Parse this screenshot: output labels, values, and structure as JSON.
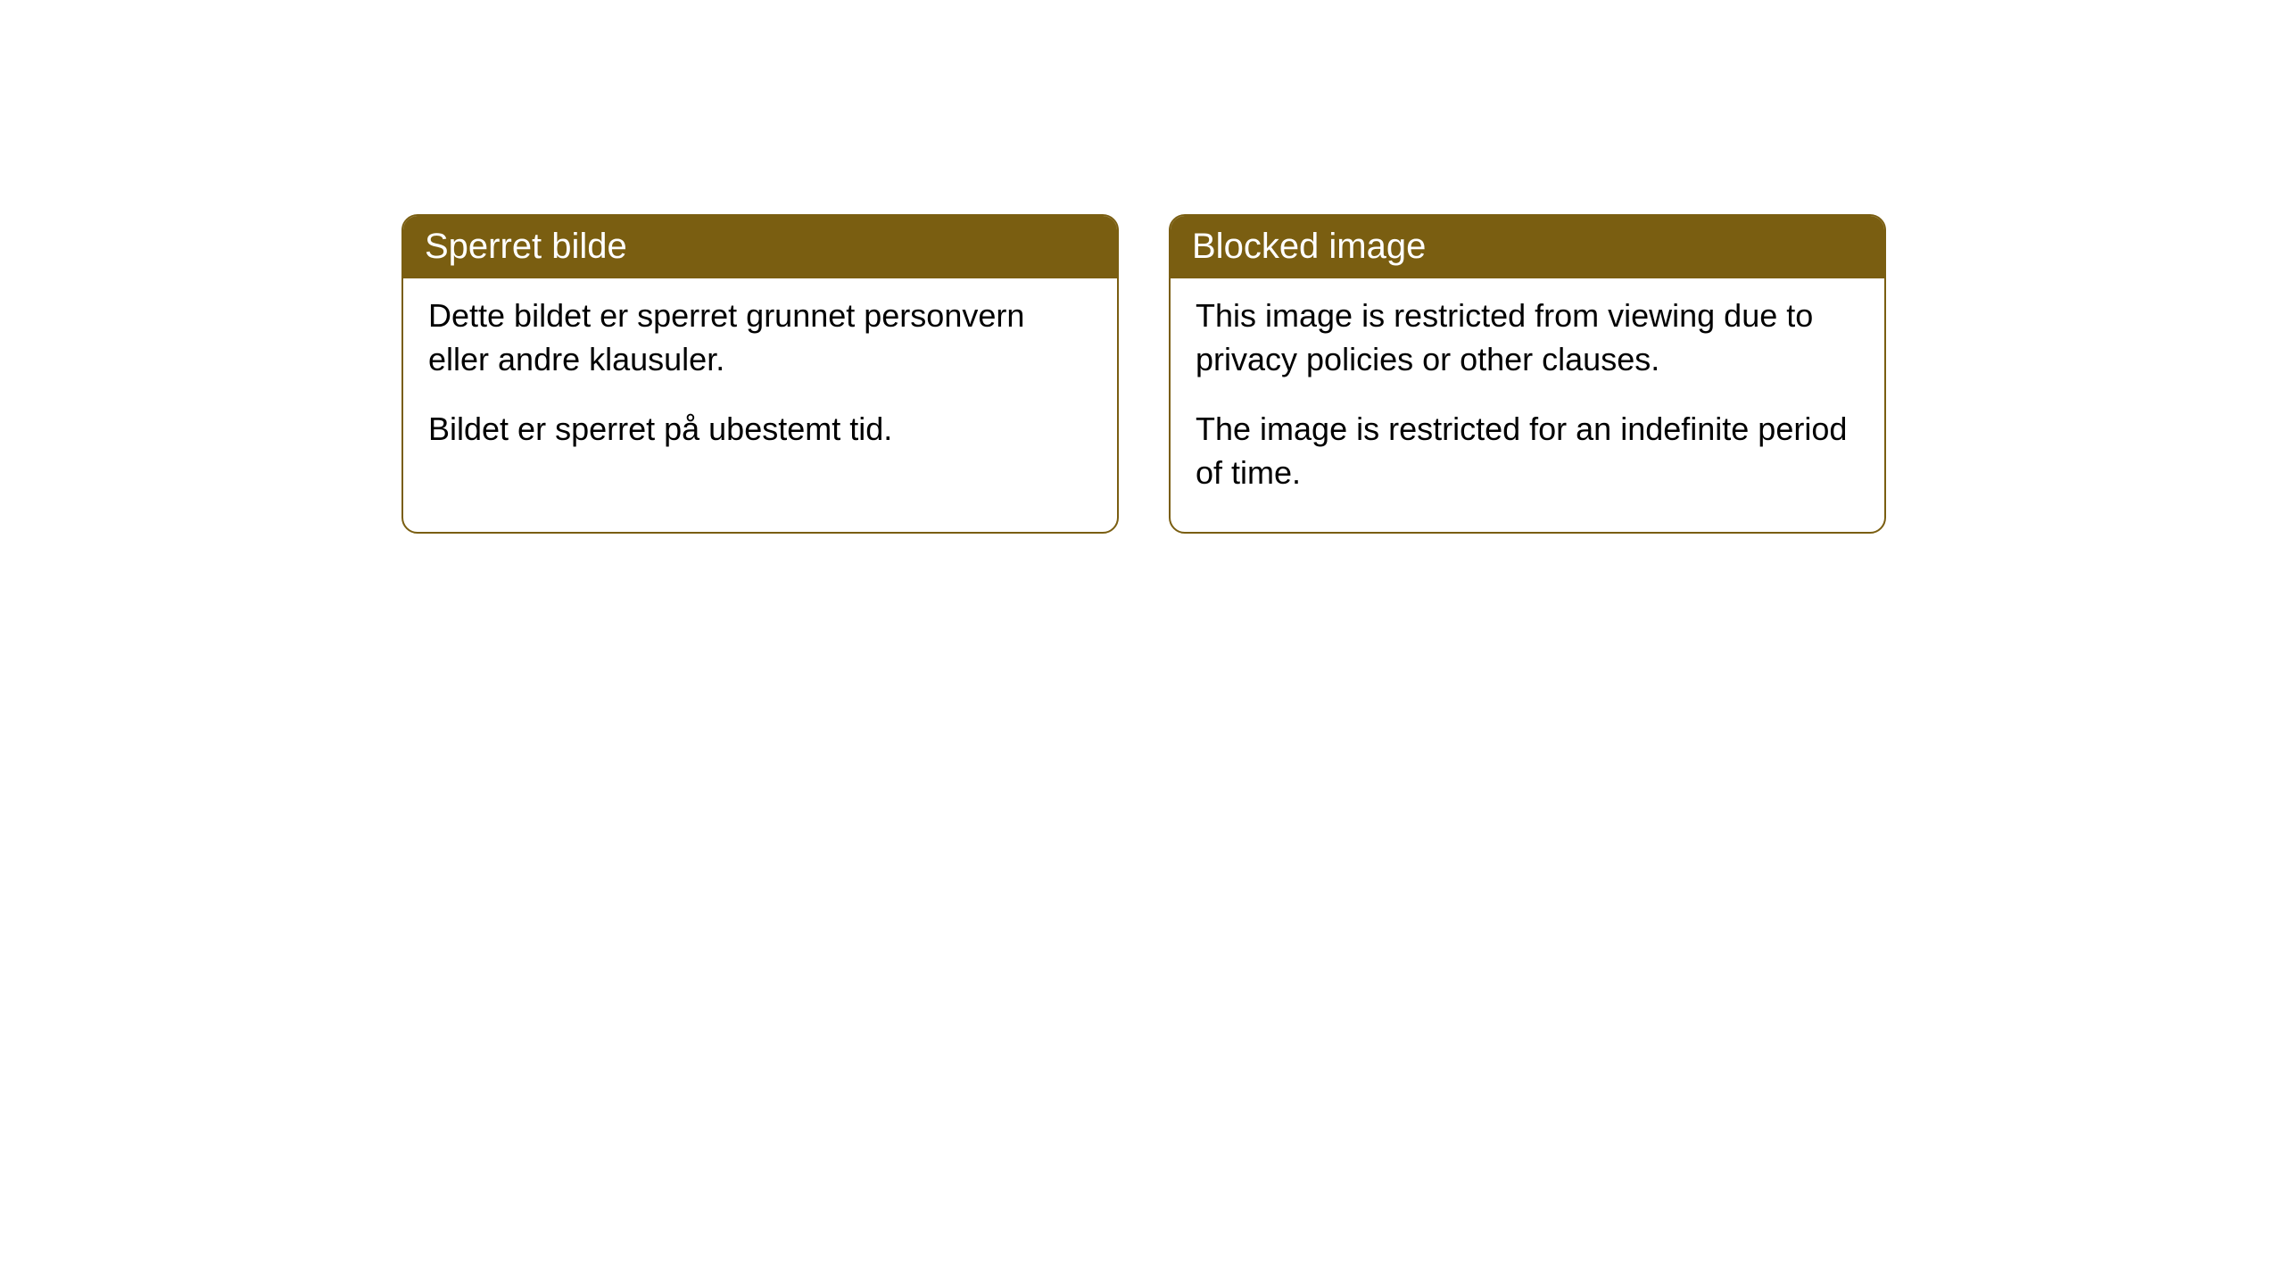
{
  "cards": [
    {
      "title": "Sperret bilde",
      "paragraph1": "Dette bildet er sperret grunnet personvern eller andre klausuler.",
      "paragraph2": "Bildet er sperret på ubestemt tid."
    },
    {
      "title": "Blocked image",
      "paragraph1": "This image is restricted from viewing due to privacy policies or other clauses.",
      "paragraph2": "The image is restricted for an indefinite period of time."
    }
  ],
  "styling": {
    "header_background_color": "#7a5e11",
    "header_text_color": "#ffffff",
    "card_border_color": "#7a5e11",
    "card_background_color": "#ffffff",
    "body_text_color": "#000000",
    "page_background_color": "#ffffff",
    "border_radius": 18,
    "header_fontsize": 40,
    "body_fontsize": 36
  }
}
